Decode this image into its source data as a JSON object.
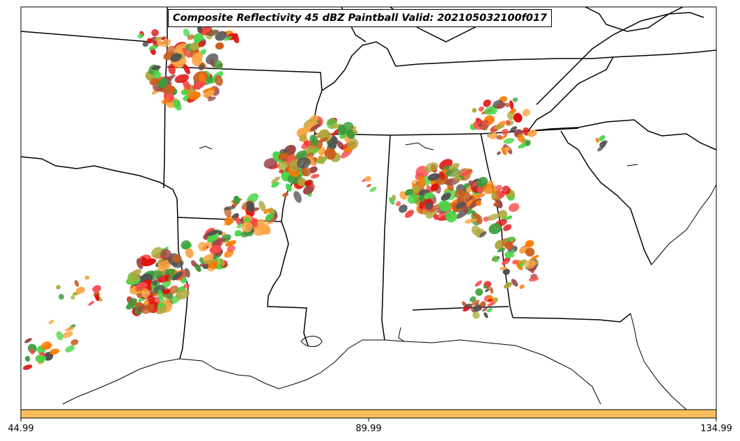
{
  "title": "Composite Reflectivity 45 dBZ Paintball Valid: 202105032100f017",
  "colorbar": {
    "color": "#FDBE5E",
    "ticks": [
      "44.99",
      "89.99",
      "134.99"
    ]
  },
  "palette": [
    "#F84A4A",
    "#FDA544",
    "#47D647",
    "#9C4848",
    "#B0A83C",
    "#3C9C3C",
    "#FF7A00",
    "#505050",
    "#E01010",
    "#C86020"
  ],
  "map": {
    "region": "southeastern united states",
    "boundaries": [
      "state-borders",
      "coastline"
    ]
  }
}
